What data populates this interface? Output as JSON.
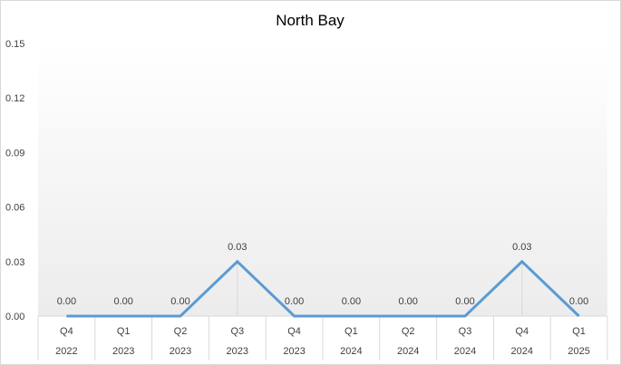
{
  "chart_data": {
    "type": "line",
    "title": "North Bay",
    "xlabel": "",
    "ylabel": "",
    "categories": [
      {
        "quarter": "Q4",
        "year": "2022"
      },
      {
        "quarter": "Q1",
        "year": "2023"
      },
      {
        "quarter": "Q2",
        "year": "2023"
      },
      {
        "quarter": "Q3",
        "year": "2023"
      },
      {
        "quarter": "Q4",
        "year": "2023"
      },
      {
        "quarter": "Q1",
        "year": "2024"
      },
      {
        "quarter": "Q2",
        "year": "2024"
      },
      {
        "quarter": "Q3",
        "year": "2024"
      },
      {
        "quarter": "Q4",
        "year": "2024"
      },
      {
        "quarter": "Q1",
        "year": "2025"
      }
    ],
    "series": [
      {
        "values": [
          0.0,
          0.0,
          0.0,
          0.03,
          0.0,
          0.0,
          0.0,
          0.0,
          0.03,
          0.0
        ],
        "data_labels": [
          "0.00",
          "0.00",
          "0.00",
          "0.03",
          "0.00",
          "0.00",
          "0.00",
          "0.00",
          "0.03",
          "0.00"
        ],
        "color": "#5b9bd5"
      }
    ],
    "ylim": [
      0,
      0.15
    ],
    "yticks": [
      "0.00",
      "0.03",
      "0.06",
      "0.09",
      "0.12",
      "0.15"
    ],
    "grid": false,
    "legend": "none",
    "colors": {
      "line": "#5b9bd5",
      "drop_line": "#d9d9d9",
      "axis": "#d9d9d9",
      "plot_gradient_top": "#ffffff",
      "plot_gradient_bottom": "#ececec",
      "border": "#d9d9d9"
    }
  }
}
